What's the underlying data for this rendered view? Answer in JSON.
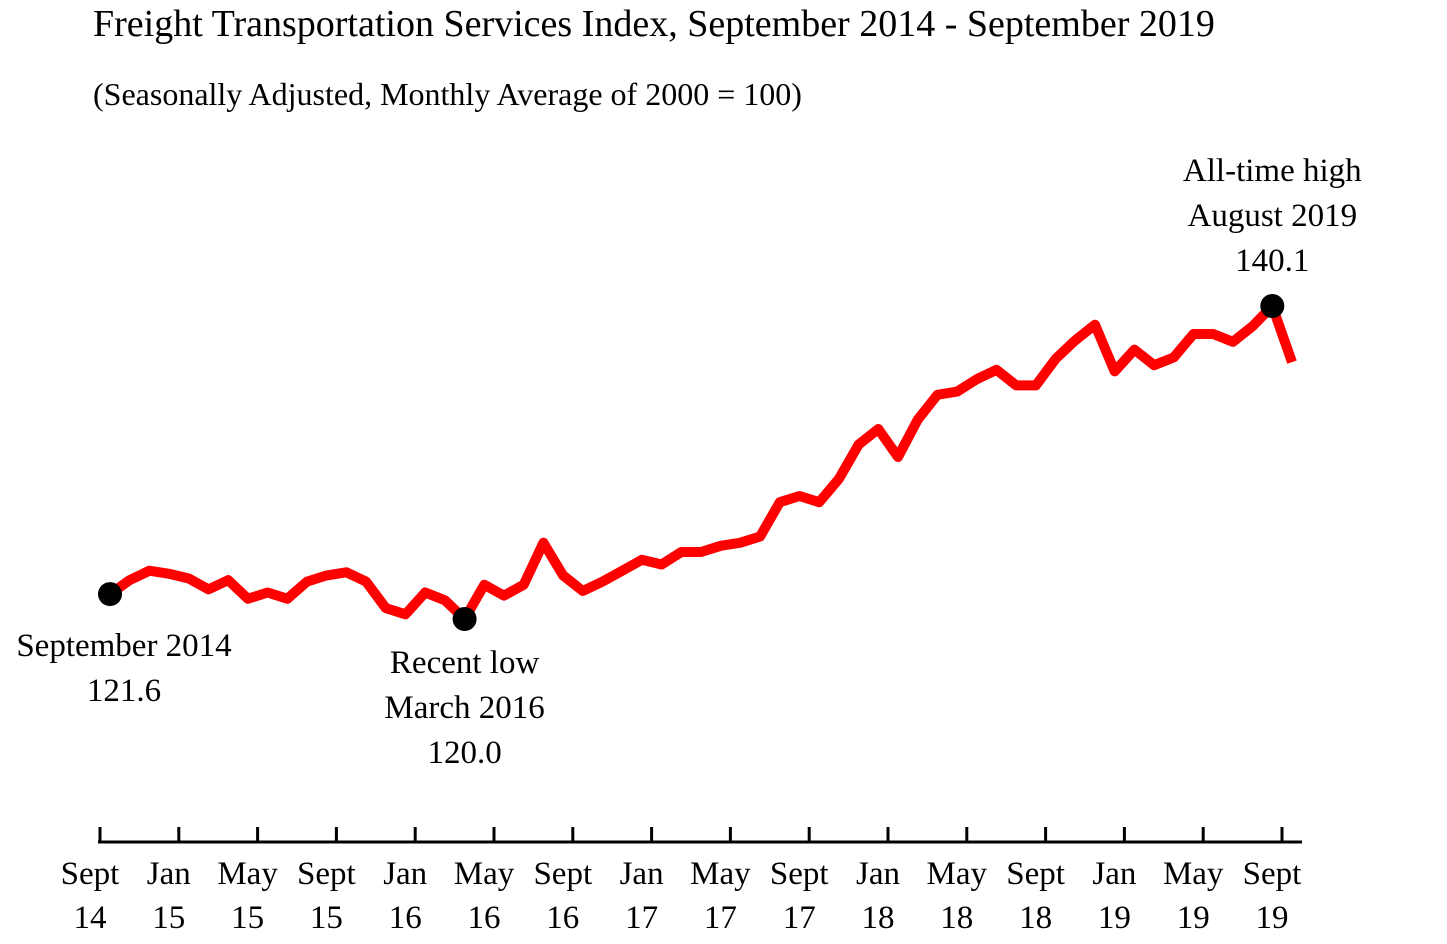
{
  "chart_data": {
    "type": "line",
    "title": "Freight Transportation Services Index, September 2014 - September 2019",
    "subtitle": "(Seasonally Adjusted, Monthly Average of 2000 = 100)",
    "categories": [
      "Sept\n14",
      null,
      null,
      null,
      "Jan\n15",
      null,
      null,
      null,
      "May\n15",
      null,
      null,
      null,
      "Sept\n15",
      null,
      null,
      null,
      "Jan\n16",
      null,
      null,
      null,
      "May\n16",
      null,
      null,
      null,
      "Sept\n16",
      null,
      null,
      null,
      "Jan\n17",
      null,
      null,
      null,
      "May\n17",
      null,
      null,
      null,
      "Sept\n17",
      null,
      null,
      null,
      "Jan\n18",
      null,
      null,
      null,
      "May\n18",
      null,
      null,
      null,
      "Sept\n18",
      null,
      null,
      null,
      "Jan\n19",
      null,
      null,
      null,
      "May\n19",
      null,
      null,
      null,
      "Sept\n19"
    ],
    "series": [
      {
        "name": "Freight Transportation Services Index",
        "color": "#ff0000",
        "values": [
          121.6,
          122.5,
          123.1,
          122.9,
          122.6,
          121.9,
          122.5,
          121.3,
          121.7,
          121.3,
          122.4,
          122.8,
          123.0,
          122.4,
          120.7,
          120.3,
          121.7,
          121.2,
          120.0,
          122.2,
          121.5,
          122.2,
          124.9,
          122.8,
          121.8,
          122.4,
          123.1,
          123.8,
          123.5,
          124.3,
          124.3,
          124.7,
          124.9,
          125.3,
          127.5,
          127.9,
          127.5,
          129.0,
          131.2,
          132.2,
          130.4,
          132.8,
          134.4,
          134.6,
          135.4,
          136.0,
          135.0,
          135.0,
          136.7,
          137.9,
          138.9,
          135.9,
          137.3,
          136.3,
          136.8,
          138.3,
          138.3,
          137.8,
          138.8,
          140.1,
          136.5
        ]
      }
    ],
    "annotations": [
      "September 2014\n121.6",
      "Recent low\nMarch 2016\n120.0",
      "All-time high\nAugust 2019\n140.1"
    ]
  }
}
